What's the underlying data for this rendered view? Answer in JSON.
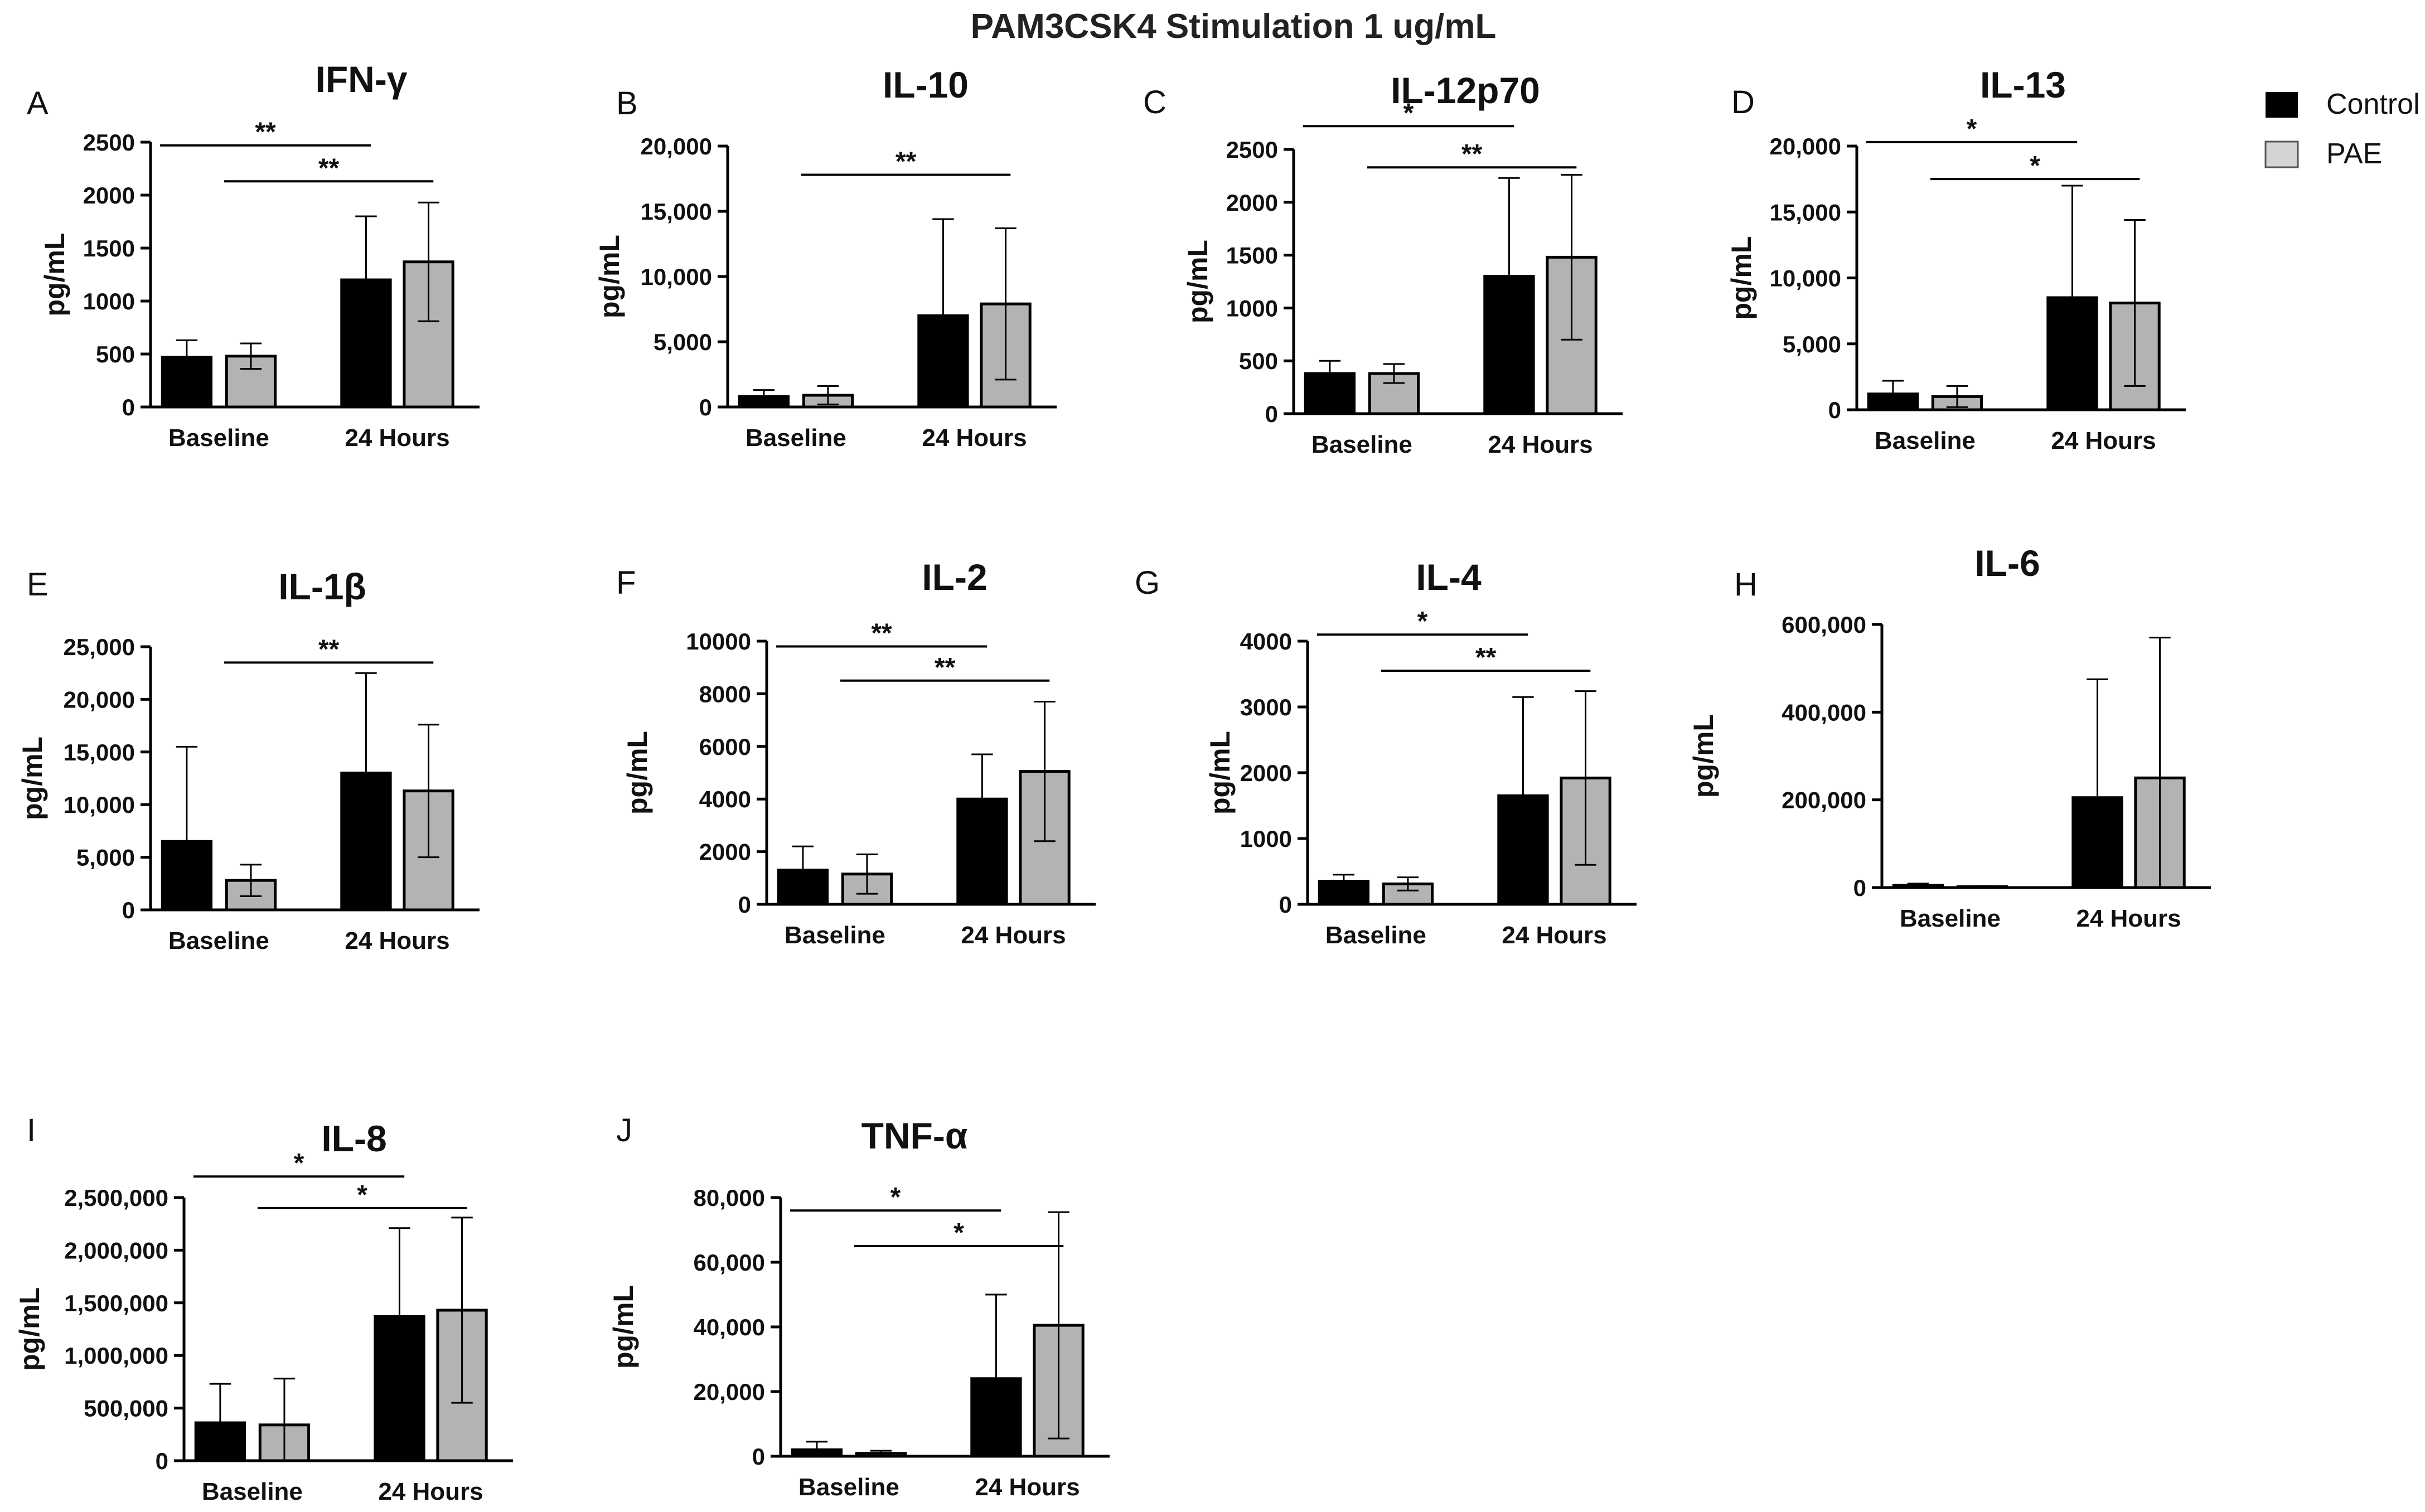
{
  "figure": {
    "title": "PAM3CSK4 Stimulation 1 ug/mL",
    "legend": [
      {
        "name": "Control",
        "color": "#000000"
      },
      {
        "name": "PAE",
        "color": "#b3b3b3"
      }
    ]
  },
  "chart_data": [
    {
      "type": "bar",
      "panel": "A",
      "title": "IFN-γ",
      "ylabel": "pg/mL",
      "categories": [
        "Baseline",
        "24 Hours"
      ],
      "ylim": [
        0,
        2500
      ],
      "yticks": [
        0,
        500,
        1000,
        1500,
        2000,
        2500
      ],
      "ytick_labels": [
        "0",
        "500",
        "1000",
        "1500",
        "2000",
        "2500"
      ],
      "series": [
        {
          "name": "Control",
          "values": [
            470,
            1200
          ],
          "errors": [
            160,
            600
          ]
        },
        {
          "name": "PAE",
          "values": [
            480,
            1370
          ],
          "errors": [
            120,
            560
          ]
        }
      ],
      "significance": [
        {
          "from": "Control-Baseline",
          "to": "Control-24 Hours",
          "label": "**",
          "y": 2470
        },
        {
          "from": "PAE-Baseline",
          "to": "PAE-24 Hours",
          "label": "**",
          "y": 2130
        }
      ]
    },
    {
      "type": "bar",
      "panel": "B",
      "title": "IL-10",
      "ylabel": "pg/mL",
      "categories": [
        "Baseline",
        "24 Hours"
      ],
      "ylim": [
        0,
        20000
      ],
      "yticks": [
        0,
        5000,
        10000,
        15000,
        20000
      ],
      "ytick_labels": [
        "0",
        "5,000",
        "10,000",
        "15,000",
        "20,000"
      ],
      "series": [
        {
          "name": "Control",
          "values": [
            800,
            7000
          ],
          "errors": [
            500,
            7400
          ]
        },
        {
          "name": "PAE",
          "values": [
            900,
            7900
          ],
          "errors": [
            700,
            5800
          ]
        }
      ],
      "significance": [
        {
          "from": "PAE-Baseline",
          "to": "PAE-24 Hours",
          "label": "**",
          "y": 17800
        }
      ]
    },
    {
      "type": "bar",
      "panel": "C",
      "title": "IL-12p70",
      "ylabel": "pg/mL",
      "categories": [
        "Baseline",
        "24 Hours"
      ],
      "ylim": [
        0,
        2500
      ],
      "yticks": [
        0,
        500,
        1000,
        1500,
        2000,
        2500
      ],
      "ytick_labels": [
        "0",
        "500",
        "1000",
        "1500",
        "2000",
        "2500"
      ],
      "series": [
        {
          "name": "Control",
          "values": [
            380,
            1300
          ],
          "errors": [
            120,
            930
          ]
        },
        {
          "name": "PAE",
          "values": [
            380,
            1480
          ],
          "errors": [
            90,
            780
          ]
        }
      ],
      "significance": [
        {
          "from": "Control-Baseline",
          "to": "Control-24 Hours",
          "label": "*",
          "y": 2720
        },
        {
          "from": "PAE-Baseline",
          "to": "PAE-24 Hours",
          "label": "**",
          "y": 2330
        }
      ]
    },
    {
      "type": "bar",
      "panel": "D",
      "title": "IL-13",
      "ylabel": "pg/mL",
      "categories": [
        "Baseline",
        "24 Hours"
      ],
      "ylim": [
        0,
        20000
      ],
      "yticks": [
        0,
        5000,
        10000,
        15000,
        20000
      ],
      "ytick_labels": [
        "0",
        "5,000",
        "10,000",
        "15,000",
        "20,000"
      ],
      "series": [
        {
          "name": "Control",
          "values": [
            1200,
            8500
          ],
          "errors": [
            1000,
            8500
          ]
        },
        {
          "name": "PAE",
          "values": [
            1000,
            8100
          ],
          "errors": [
            800,
            6300
          ]
        }
      ],
      "significance": [
        {
          "from": "Control-Baseline",
          "to": "Control-24 Hours",
          "label": "*",
          "y": 20300
        },
        {
          "from": "PAE-Baseline",
          "to": "PAE-24 Hours",
          "label": "*",
          "y": 17500
        }
      ]
    },
    {
      "type": "bar",
      "panel": "E",
      "title": "IL-1β",
      "ylabel": "pg/mL",
      "categories": [
        "Baseline",
        "24 Hours"
      ],
      "ylim": [
        0,
        25000
      ],
      "yticks": [
        0,
        5000,
        10000,
        15000,
        20000,
        25000
      ],
      "ytick_labels": [
        "0",
        "5,000",
        "10,000",
        "15,000",
        "20,000",
        "25,000"
      ],
      "series": [
        {
          "name": "Control",
          "values": [
            6500,
            13000
          ],
          "errors": [
            9000,
            9500
          ]
        },
        {
          "name": "PAE",
          "values": [
            2800,
            11300
          ],
          "errors": [
            1500,
            6300
          ]
        }
      ],
      "significance": [
        {
          "from": "PAE-Baseline",
          "to": "PAE-24 Hours",
          "label": "**",
          "y": 23500
        }
      ]
    },
    {
      "type": "bar",
      "panel": "F",
      "title": "IL-2",
      "ylabel": "pg/mL",
      "categories": [
        "Baseline",
        "24 Hours"
      ],
      "ylim": [
        0,
        10000
      ],
      "yticks": [
        0,
        2000,
        4000,
        6000,
        8000,
        10000
      ],
      "ytick_labels": [
        "0",
        "2000",
        "4000",
        "6000",
        "8000",
        "10000"
      ],
      "series": [
        {
          "name": "Control",
          "values": [
            1300,
            4000
          ],
          "errors": [
            900,
            1700
          ]
        },
        {
          "name": "PAE",
          "values": [
            1150,
            5050
          ],
          "errors": [
            750,
            2650
          ]
        }
      ],
      "significance": [
        {
          "from": "Control-Baseline",
          "to": "Control-24 Hours",
          "label": "**",
          "y": 9800
        },
        {
          "from": "PAE-Baseline",
          "to": "PAE-24 Hours",
          "label": "**",
          "y": 8500
        }
      ]
    },
    {
      "type": "bar",
      "panel": "G",
      "title": "IL-4",
      "ylabel": "pg/mL",
      "categories": [
        "Baseline",
        "24 Hours"
      ],
      "ylim": [
        0,
        4000
      ],
      "yticks": [
        0,
        1000,
        2000,
        3000,
        4000
      ],
      "ytick_labels": [
        "0",
        "1000",
        "2000",
        "3000",
        "4000"
      ],
      "series": [
        {
          "name": "Control",
          "values": [
            350,
            1650
          ],
          "errors": [
            100,
            1500
          ]
        },
        {
          "name": "PAE",
          "values": [
            310,
            1920
          ],
          "errors": [
            100,
            1320
          ]
        }
      ],
      "significance": [
        {
          "from": "Control-Baseline",
          "to": "Control-24 Hours",
          "label": "*",
          "y": 4100
        },
        {
          "from": "PAE-Baseline",
          "to": "PAE-24 Hours",
          "label": "**",
          "y": 3550
        }
      ]
    },
    {
      "type": "bar",
      "panel": "H",
      "title": "IL-6",
      "ylabel": "pg/mL",
      "categories": [
        "Baseline",
        "24 Hours"
      ],
      "ylim": [
        0,
        600000
      ],
      "yticks": [
        0,
        200000,
        400000,
        600000
      ],
      "ytick_labels": [
        "0",
        "200,000",
        "400,000",
        "600,000"
      ],
      "series": [
        {
          "name": "Control",
          "values": [
            5000,
            205000
          ],
          "errors": [
            4000,
            270000
          ]
        },
        {
          "name": "PAE",
          "values": [
            2000,
            250000
          ],
          "errors": [
            1500,
            320000
          ]
        }
      ],
      "significance": []
    },
    {
      "type": "bar",
      "panel": "I",
      "title": "IL-8",
      "ylabel": "pg/mL",
      "categories": [
        "Baseline",
        "24 Hours"
      ],
      "ylim": [
        0,
        2500000
      ],
      "yticks": [
        0,
        500000,
        1000000,
        1500000,
        2000000,
        2500000
      ],
      "ytick_labels": [
        "0",
        "500,000",
        "1,000,000",
        "1,500,000",
        "2,000,000",
        "2,500,000"
      ],
      "series": [
        {
          "name": "Control",
          "values": [
            360000,
            1370000
          ],
          "errors": [
            370000,
            840000
          ]
        },
        {
          "name": "PAE",
          "values": [
            340000,
            1430000
          ],
          "errors": [
            440000,
            880000
          ]
        }
      ],
      "significance": [
        {
          "from": "Control-Baseline",
          "to": "Control-24 Hours",
          "label": "*",
          "y": 2700000
        },
        {
          "from": "PAE-Baseline",
          "to": "PAE-24 Hours",
          "label": "*",
          "y": 2400000
        }
      ]
    },
    {
      "type": "bar",
      "panel": "J",
      "title": "TNF-α",
      "ylabel": "pg/mL",
      "categories": [
        "Baseline",
        "24 Hours"
      ],
      "ylim": [
        0,
        80000
      ],
      "yticks": [
        0,
        20000,
        40000,
        60000,
        80000
      ],
      "ytick_labels": [
        "0",
        "20,000",
        "40,000",
        "60,000",
        "80,000"
      ],
      "series": [
        {
          "name": "Control",
          "values": [
            2000,
            24000
          ],
          "errors": [
            2500,
            26000
          ]
        },
        {
          "name": "PAE",
          "values": [
            900,
            40500
          ],
          "errors": [
            800,
            35000
          ]
        }
      ],
      "significance": [
        {
          "from": "Control-Baseline",
          "to": "Control-24 Hours",
          "label": "*",
          "y": 76000
        },
        {
          "from": "PAE-Baseline",
          "to": "PAE-24 Hours",
          "label": "*",
          "y": 65000
        }
      ]
    }
  ]
}
